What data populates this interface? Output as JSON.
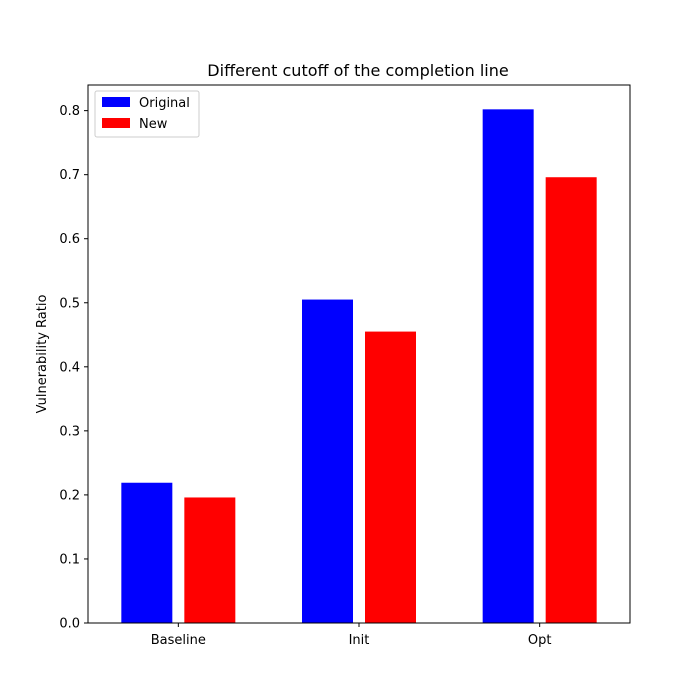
{
  "chart_data": {
    "type": "bar",
    "title": "Different cutoff of the completion line",
    "xlabel": "",
    "ylabel": "Vulnerability Ratio",
    "categories": [
      "Baseline",
      "Init",
      "Opt"
    ],
    "series": [
      {
        "name": "Original",
        "color": "#0000ff",
        "values": [
          0.219,
          0.505,
          0.802
        ]
      },
      {
        "name": "New",
        "color": "#ff0000",
        "values": [
          0.196,
          0.455,
          0.696
        ]
      }
    ],
    "ylim": [
      0,
      0.84
    ],
    "yticks": [
      "0.0",
      "0.1",
      "0.2",
      "0.3",
      "0.4",
      "0.5",
      "0.6",
      "0.7",
      "0.8"
    ],
    "legend_position": "top-left",
    "grid": false
  }
}
